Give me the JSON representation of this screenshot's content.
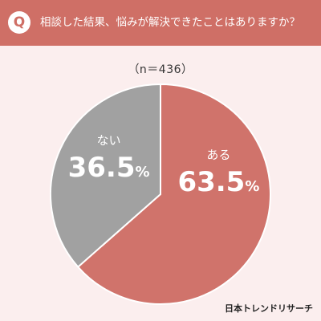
{
  "header": {
    "badge": "Q",
    "question": "相談した結果、悩みが解決できたことはありますか？"
  },
  "sample_label": "（n＝436）",
  "logo_text": "日本トレンドリサーチ",
  "colors": {
    "header": "#cf6f66",
    "yes_slice": "#d0736b",
    "no_slice": "#a1a1a1",
    "background": "#fbeeee"
  },
  "chart_data": {
    "type": "pie",
    "title": "",
    "slices": [
      {
        "label": "ある",
        "value": 63.5,
        "display": "63.5",
        "unit": "%",
        "color": "#d0736b"
      },
      {
        "label": "ない",
        "value": 36.5,
        "display": "36.5",
        "unit": "%",
        "color": "#a1a1a1"
      }
    ]
  }
}
